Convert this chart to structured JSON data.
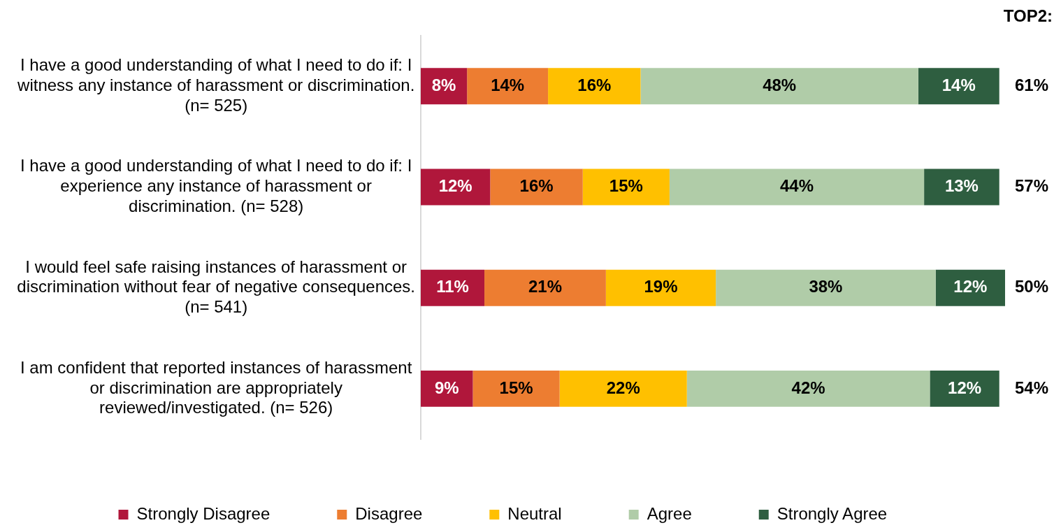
{
  "chart_data": {
    "type": "bar",
    "orientation": "horizontal",
    "stacked": true,
    "tick_labels": "y",
    "categories": [
      "I have a good understanding of what I need to do if: I witness any instance of harassment or discrimination. (n= 525)",
      "I have a good understanding of what I need to do if: I experience any instance of harassment or discrimination. (n= 528)",
      "I would feel safe raising instances of harassment or discrimination without fear of negative consequences. (n= 541)",
      "I am confident that reported instances of harassment or discrimination are appropriately reviewed/investigated. (n= 526)"
    ],
    "series": [
      {
        "name": "Strongly Disagree",
        "color": "#b0173b",
        "values": [
          8,
          12,
          11,
          9
        ],
        "value_labels": [
          "8%",
          "12%",
          "11%",
          "9%"
        ]
      },
      {
        "name": "Disagree",
        "color": "#ed7d31",
        "values": [
          14,
          16,
          21,
          15
        ],
        "value_labels": [
          "14%",
          "16%",
          "21%",
          "15%"
        ]
      },
      {
        "name": "Neutral",
        "color": "#ffc000",
        "values": [
          16,
          15,
          19,
          22
        ],
        "value_labels": [
          "16%",
          "15%",
          "19%",
          "22%"
        ]
      },
      {
        "name": "Agree",
        "color": "#b0cca8",
        "values": [
          48,
          44,
          38,
          42
        ],
        "value_labels": [
          "48%",
          "44%",
          "38%",
          "42%"
        ]
      },
      {
        "name": "Strongly Agree",
        "color": "#2e5e40",
        "values": [
          14,
          13,
          12,
          12
        ],
        "value_labels": [
          "14%",
          "13%",
          "12%",
          "12%"
        ]
      }
    ],
    "annotations": [
      "TOP2:",
      "61%",
      "57%",
      "50%",
      "54%"
    ],
    "legend": "bottom"
  }
}
